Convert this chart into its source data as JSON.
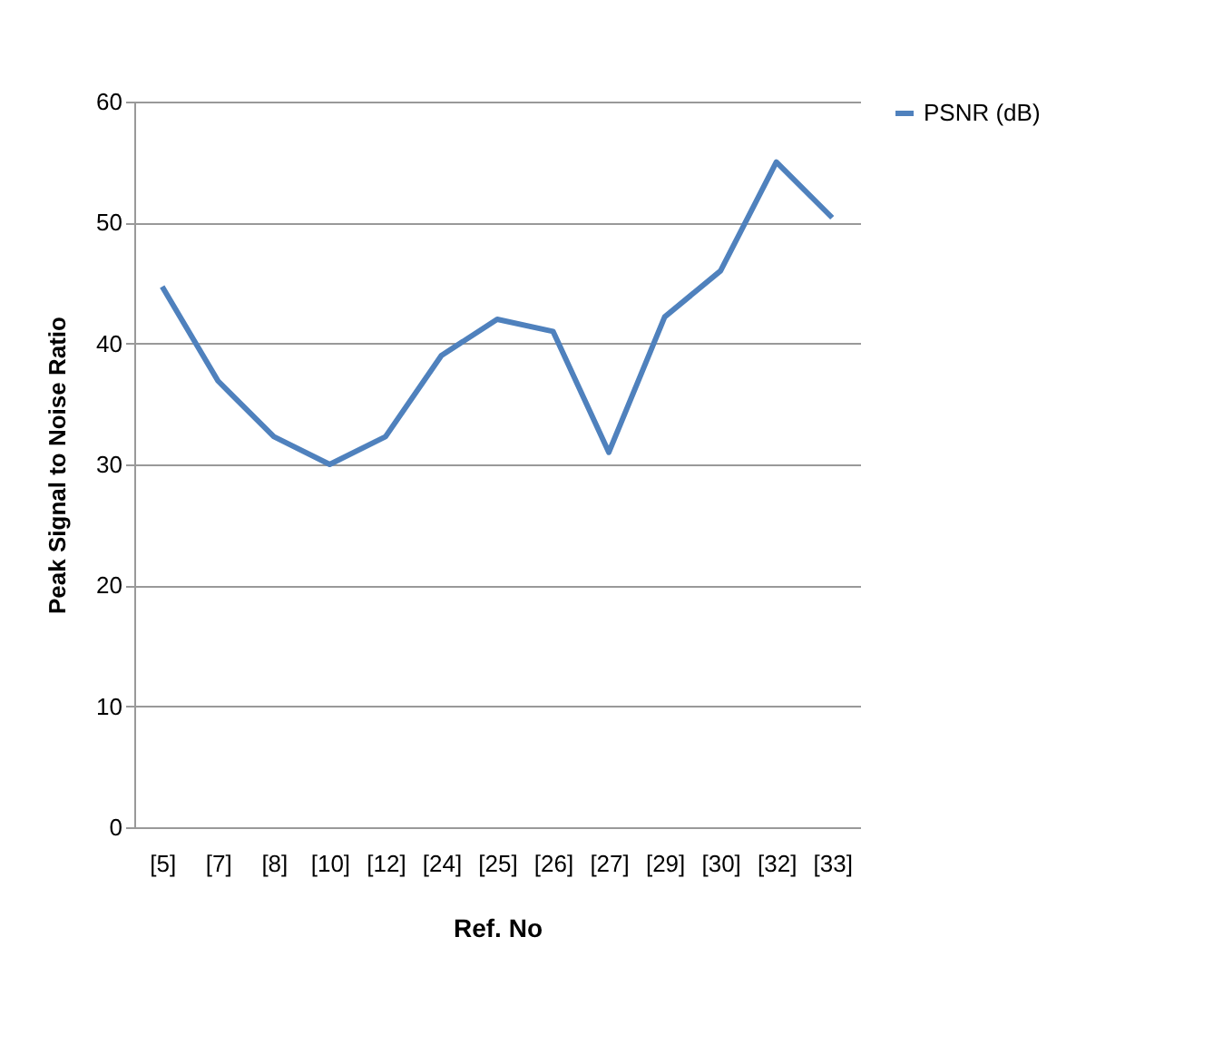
{
  "chart_data": {
    "type": "line",
    "xlabel": "Ref. No",
    "ylabel": "Peak Signal to Noise Ratio",
    "categories": [
      "[5]",
      "[7]",
      "[8]",
      "[10]",
      "[12]",
      "[24]",
      "[25]",
      "[26]",
      "[27]",
      "[29]",
      "[30]",
      "[32]",
      "[33]"
    ],
    "series": [
      {
        "name": "PSNR (dB)",
        "color": "#4f81bd",
        "values": [
          44.7,
          36.9,
          32.3,
          30,
          32.3,
          39,
          42,
          41,
          31,
          42.2,
          46,
          55,
          50.4
        ]
      }
    ],
    "ylim": [
      0,
      60
    ],
    "yticks": [
      0,
      10,
      20,
      30,
      40,
      50,
      60
    ],
    "grid": "y",
    "legend": "right",
    "marker": "none",
    "line_style": "solid"
  }
}
